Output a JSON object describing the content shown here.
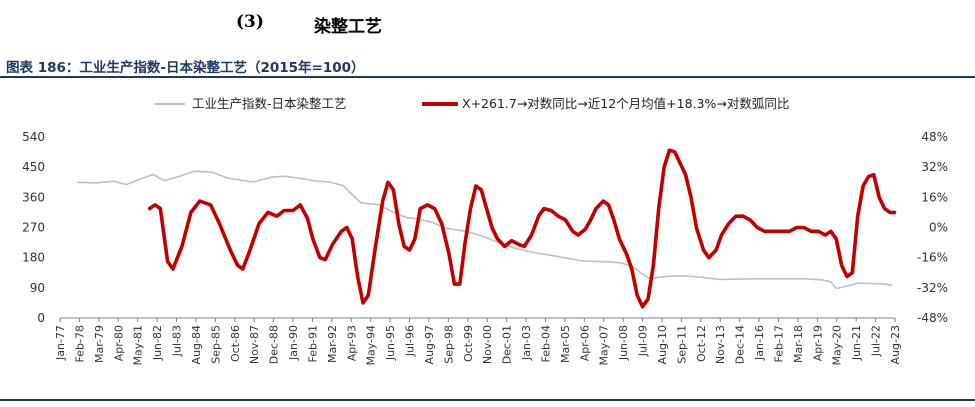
{
  "heading": {
    "number": "(3)",
    "title": "染整工艺"
  },
  "figure_title": "图表 186：工业生产指数-日本染整工艺（2015年=100）",
  "colors": {
    "index_line": "#bfbfbf",
    "growth_line": "#c00000",
    "rule": "#1f3864"
  },
  "chart_data": {
    "type": "line",
    "title": "图表 186：工业生产指数-日本染整工艺（2015年=100）",
    "legend_position": "top",
    "grid": false,
    "x_tick_labels": [
      "Jan-77",
      "Feb-78",
      "Mar-79",
      "Apr-80",
      "May-81",
      "Jun-82",
      "Jul-83",
      "Aug-84",
      "Sep-85",
      "Oct-86",
      "Nov-87",
      "Dec-88",
      "Jan-90",
      "Feb-91",
      "Mar-92",
      "Apr-93",
      "May-94",
      "Jun-95",
      "Jul-96",
      "Aug-97",
      "Sep-98",
      "Oct-99",
      "Nov-00",
      "Dec-01",
      "Jan-03",
      "Feb-04",
      "Mar-05",
      "Apr-06",
      "May-07",
      "Jun-08",
      "Jul-09",
      "Aug-10",
      "Sep-11",
      "Oct-12",
      "Nov-13",
      "Dec-14",
      "Jan-16",
      "Feb-17",
      "Mar-18",
      "Apr-19",
      "May-20",
      "Jun-21",
      "Jul-22",
      "Aug-23"
    ],
    "x_range": [
      1977.0,
      2023.58
    ],
    "y_left": {
      "ticks": [
        "0",
        "90",
        "180",
        "270",
        "360",
        "450",
        "540"
      ],
      "range": [
        0,
        540
      ]
    },
    "y_right": {
      "ticks": [
        "-48%",
        "-32%",
        "-16%",
        "0%",
        "16%",
        "32%",
        "48%"
      ],
      "range": [
        -48,
        48
      ]
    },
    "series": [
      {
        "name": "工业生产指数-日本染整工艺",
        "axis": "left",
        "color": "#bfbfbf",
        "points": [
          [
            1978.0,
            405
          ],
          [
            1979.0,
            403
          ],
          [
            1980.0,
            408
          ],
          [
            1980.7,
            398
          ],
          [
            1981.5,
            415
          ],
          [
            1982.2,
            428
          ],
          [
            1982.8,
            410
          ],
          [
            1983.5,
            420
          ],
          [
            1984.5,
            438
          ],
          [
            1985.5,
            435
          ],
          [
            1986.3,
            418
          ],
          [
            1987.0,
            412
          ],
          [
            1987.8,
            406
          ],
          [
            1988.8,
            420
          ],
          [
            1989.5,
            423
          ],
          [
            1990.5,
            416
          ],
          [
            1991.3,
            408
          ],
          [
            1992.0,
            406
          ],
          [
            1992.8,
            395
          ],
          [
            1993.3,
            368
          ],
          [
            1993.8,
            343
          ],
          [
            1994.8,
            338
          ],
          [
            1995.5,
            318
          ],
          [
            1996.3,
            300
          ],
          [
            1997.0,
            295
          ],
          [
            1997.8,
            285
          ],
          [
            1998.5,
            268
          ],
          [
            1999.5,
            260
          ],
          [
            2000.2,
            250
          ],
          [
            2000.8,
            240
          ],
          [
            2001.6,
            222
          ],
          [
            2002.4,
            208
          ],
          [
            2003.0,
            200
          ],
          [
            2003.8,
            192
          ],
          [
            2004.5,
            186
          ],
          [
            2005.3,
            178
          ],
          [
            2006.2,
            170
          ],
          [
            2007.3,
            168
          ],
          [
            2008.2,
            165
          ],
          [
            2008.9,
            156
          ],
          [
            2009.4,
            135
          ],
          [
            2009.9,
            118
          ],
          [
            2010.8,
            124
          ],
          [
            2011.5,
            126
          ],
          [
            2012.4,
            124
          ],
          [
            2013.0,
            120
          ],
          [
            2013.8,
            115
          ],
          [
            2014.8,
            116
          ],
          [
            2016.0,
            117
          ],
          [
            2017.5,
            117
          ],
          [
            2018.5,
            117
          ],
          [
            2019.5,
            114
          ],
          [
            2020.0,
            108
          ],
          [
            2020.3,
            88
          ],
          [
            2020.8,
            94
          ],
          [
            2021.5,
            104
          ],
          [
            2022.2,
            103
          ],
          [
            2023.0,
            101
          ],
          [
            2023.4,
            98
          ]
        ]
      },
      {
        "name": "X+261.7→对数同比→近12个月均值+18.3%→对数弧同比",
        "axis": "right",
        "color": "#c00000",
        "points": [
          [
            1982.0,
            10
          ],
          [
            1982.3,
            12
          ],
          [
            1982.6,
            10
          ],
          [
            1983.0,
            -18
          ],
          [
            1983.3,
            -22
          ],
          [
            1983.8,
            -10
          ],
          [
            1984.3,
            8
          ],
          [
            1984.8,
            14
          ],
          [
            1985.4,
            12
          ],
          [
            1985.9,
            2
          ],
          [
            1986.5,
            -12
          ],
          [
            1986.9,
            -20
          ],
          [
            1987.2,
            -22
          ],
          [
            1987.6,
            -12
          ],
          [
            1988.1,
            2
          ],
          [
            1988.6,
            8
          ],
          [
            1989.1,
            6
          ],
          [
            1989.5,
            9
          ],
          [
            1990.0,
            9
          ],
          [
            1990.4,
            12
          ],
          [
            1990.8,
            5
          ],
          [
            1991.1,
            -6
          ],
          [
            1991.5,
            -16
          ],
          [
            1991.8,
            -17
          ],
          [
            1992.2,
            -9
          ],
          [
            1992.7,
            -2
          ],
          [
            1993.0,
            0
          ],
          [
            1993.3,
            -6
          ],
          [
            1993.6,
            -26
          ],
          [
            1993.9,
            -40
          ],
          [
            1994.2,
            -36
          ],
          [
            1994.6,
            -10
          ],
          [
            1995.0,
            14
          ],
          [
            1995.3,
            24
          ],
          [
            1995.6,
            20
          ],
          [
            1995.9,
            2
          ],
          [
            1996.2,
            -10
          ],
          [
            1996.5,
            -12
          ],
          [
            1996.8,
            -6
          ],
          [
            1997.1,
            10
          ],
          [
            1997.5,
            12
          ],
          [
            1997.9,
            10
          ],
          [
            1998.3,
            2
          ],
          [
            1998.7,
            -14
          ],
          [
            1999.0,
            -30
          ],
          [
            1999.3,
            -30
          ],
          [
            1999.6,
            -8
          ],
          [
            1999.9,
            10
          ],
          [
            2000.2,
            22
          ],
          [
            2000.5,
            20
          ],
          [
            2000.8,
            10
          ],
          [
            2001.1,
            0
          ],
          [
            2001.4,
            -6
          ],
          [
            2001.8,
            -10
          ],
          [
            2002.2,
            -7
          ],
          [
            2002.6,
            -9
          ],
          [
            2002.9,
            -10
          ],
          [
            2003.3,
            -4
          ],
          [
            2003.7,
            6
          ],
          [
            2004.0,
            10
          ],
          [
            2004.4,
            9
          ],
          [
            2004.8,
            6
          ],
          [
            2005.2,
            4
          ],
          [
            2005.6,
            -2
          ],
          [
            2005.9,
            -4
          ],
          [
            2006.3,
            -1
          ],
          [
            2006.6,
            4
          ],
          [
            2006.9,
            10
          ],
          [
            2007.3,
            14
          ],
          [
            2007.6,
            12
          ],
          [
            2007.9,
            4
          ],
          [
            2008.2,
            -6
          ],
          [
            2008.6,
            -14
          ],
          [
            2008.9,
            -22
          ],
          [
            2009.2,
            -36
          ],
          [
            2009.5,
            -42
          ],
          [
            2009.8,
            -38
          ],
          [
            2010.1,
            -20
          ],
          [
            2010.4,
            10
          ],
          [
            2010.7,
            32
          ],
          [
            2011.0,
            41
          ],
          [
            2011.3,
            40
          ],
          [
            2011.6,
            34
          ],
          [
            2011.9,
            28
          ],
          [
            2012.2,
            16
          ],
          [
            2012.5,
            0
          ],
          [
            2012.9,
            -12
          ],
          [
            2013.2,
            -16
          ],
          [
            2013.6,
            -12
          ],
          [
            2013.9,
            -4
          ],
          [
            2014.3,
            2
          ],
          [
            2014.7,
            6
          ],
          [
            2015.1,
            6
          ],
          [
            2015.5,
            4
          ],
          [
            2015.9,
            0
          ],
          [
            2016.3,
            -2
          ],
          [
            2016.8,
            -2
          ],
          [
            2017.3,
            -2
          ],
          [
            2017.7,
            -2
          ],
          [
            2018.1,
            0
          ],
          [
            2018.5,
            0
          ],
          [
            2018.9,
            -2
          ],
          [
            2019.3,
            -2
          ],
          [
            2019.7,
            -4
          ],
          [
            2020.0,
            -2
          ],
          [
            2020.3,
            -6
          ],
          [
            2020.6,
            -20
          ],
          [
            2020.9,
            -26
          ],
          [
            2021.2,
            -24
          ],
          [
            2021.5,
            6
          ],
          [
            2021.8,
            22
          ],
          [
            2022.1,
            27
          ],
          [
            2022.4,
            28
          ],
          [
            2022.7,
            16
          ],
          [
            2023.0,
            10
          ],
          [
            2023.3,
            8
          ],
          [
            2023.55,
            8
          ]
        ]
      }
    ]
  }
}
